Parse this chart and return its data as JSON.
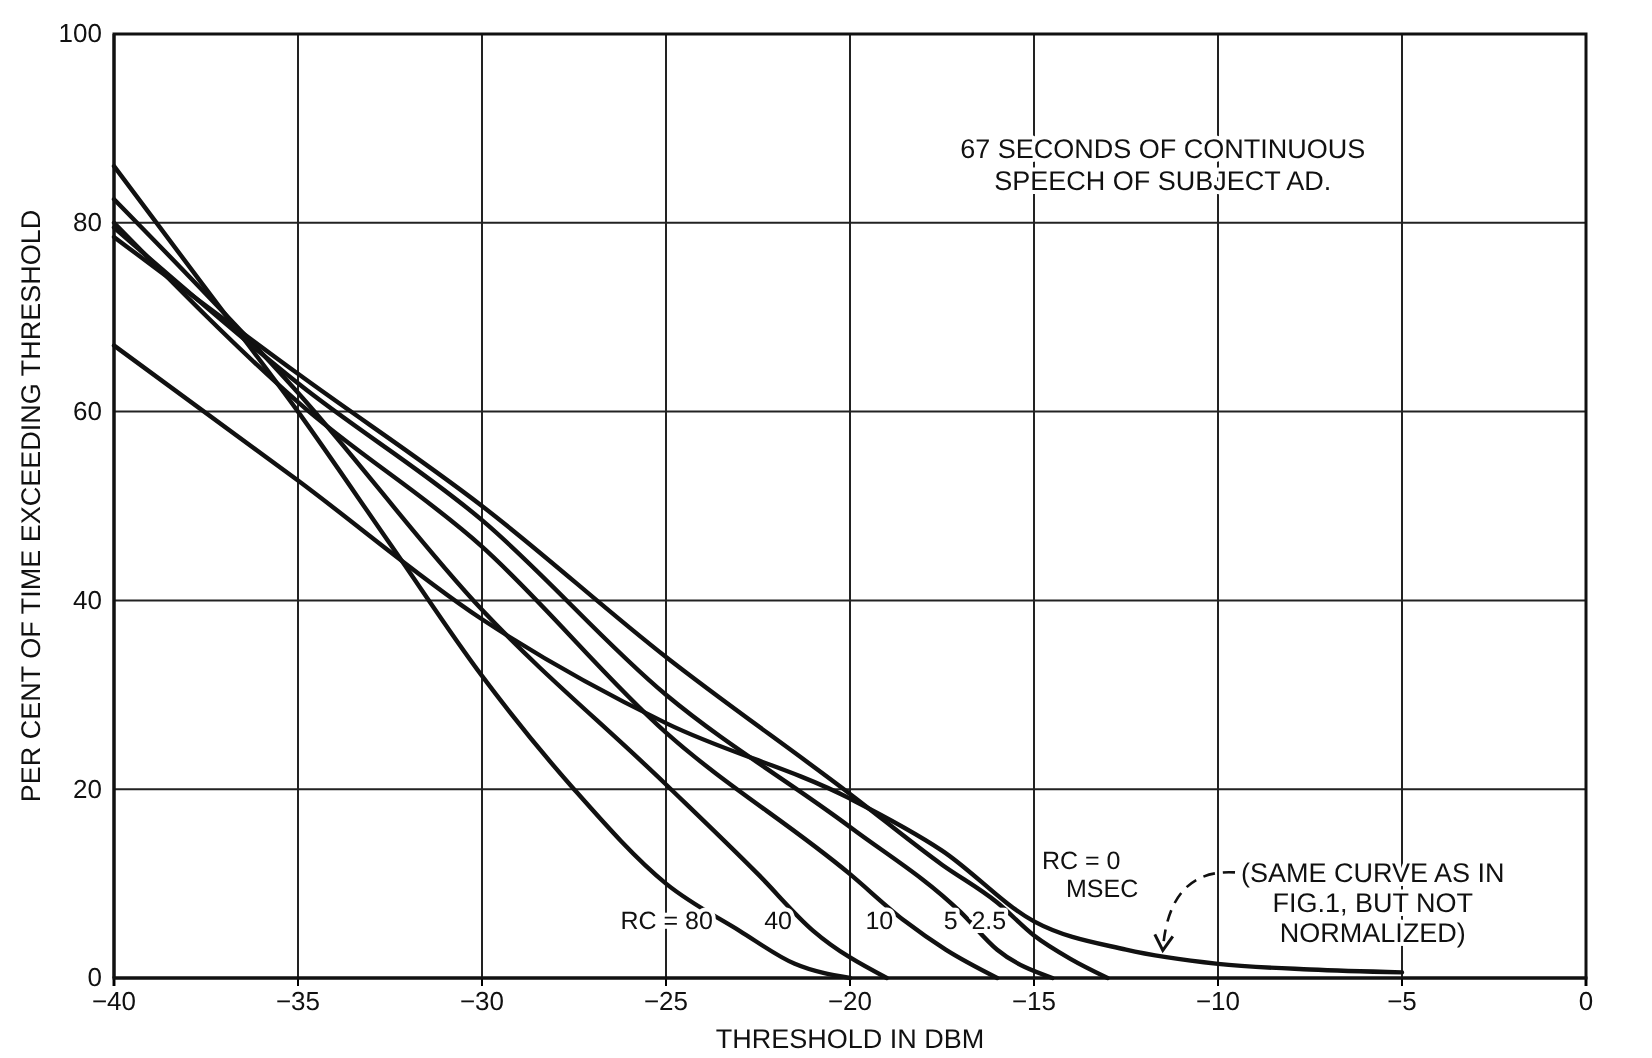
{
  "chart_data": {
    "type": "line",
    "title": "67 SECONDS OF CONTINUOUS SPEECH OF SUBJECT AD.",
    "xlabel": "THRESHOLD IN DBM",
    "ylabel": "PER CENT OF TIME EXCEEDING THRESHOLD",
    "xlim": [
      -40,
      0
    ],
    "xticks": [
      -40,
      -35,
      -30,
      -25,
      -20,
      -15,
      -10,
      -5,
      0
    ],
    "ylim": [
      0,
      100
    ],
    "yticks": [
      0,
      20,
      40,
      60,
      80,
      100
    ],
    "grid": true,
    "marker": "none",
    "line_style": "solid",
    "series": [
      {
        "name": "RC = 80",
        "color": "#111111",
        "x": [
          -40,
          -37.5,
          -35,
          -32.5,
          -30,
          -27.5,
          -25,
          -23,
          -21.5,
          -20
        ],
        "values": [
          86,
          73,
          60,
          46,
          32,
          20,
          10,
          5,
          1.5,
          0
        ]
      },
      {
        "name": "40",
        "color": "#111111",
        "x": [
          -40,
          -35,
          -30,
          -25,
          -22.5,
          -21,
          -19
        ],
        "values": [
          82.5,
          62,
          39,
          20.5,
          11,
          5,
          0
        ]
      },
      {
        "name": "10",
        "color": "#111111",
        "x": [
          -40,
          -35,
          -30,
          -25,
          -20,
          -18.5,
          -17.4,
          -16
        ],
        "values": [
          80,
          61,
          45.7,
          26,
          11,
          6,
          3,
          0
        ]
      },
      {
        "name": "5",
        "color": "#111111",
        "x": [
          -40,
          -35,
          -30,
          -25,
          -20,
          -17,
          -16,
          -14.5
        ],
        "values": [
          79.5,
          63,
          48.5,
          30,
          16,
          7,
          3,
          0
        ]
      },
      {
        "name": "2.5",
        "color": "#111111",
        "x": [
          -40,
          -35,
          -30,
          -25,
          -20,
          -17.5,
          -16,
          -15,
          -14,
          -13
        ],
        "values": [
          78.5,
          64,
          50,
          34,
          19.5,
          12,
          8,
          4.5,
          2,
          0
        ]
      },
      {
        "name": "RC = 0 MSEC",
        "color": "#111111",
        "x": [
          -40,
          -35,
          -30,
          -25,
          -20,
          -17.5,
          -15,
          -12.5,
          -10,
          -7.5,
          -5
        ],
        "values": [
          67,
          52.7,
          38,
          27,
          19,
          13.5,
          6,
          3,
          1.5,
          0.9,
          0.6
        ]
      }
    ],
    "annotations": [
      {
        "text": "(SAME CURVE AS IN FIG.1, BUT NOT NORMALIZED)",
        "x": -11.5,
        "y": 2.5
      }
    ]
  }
}
